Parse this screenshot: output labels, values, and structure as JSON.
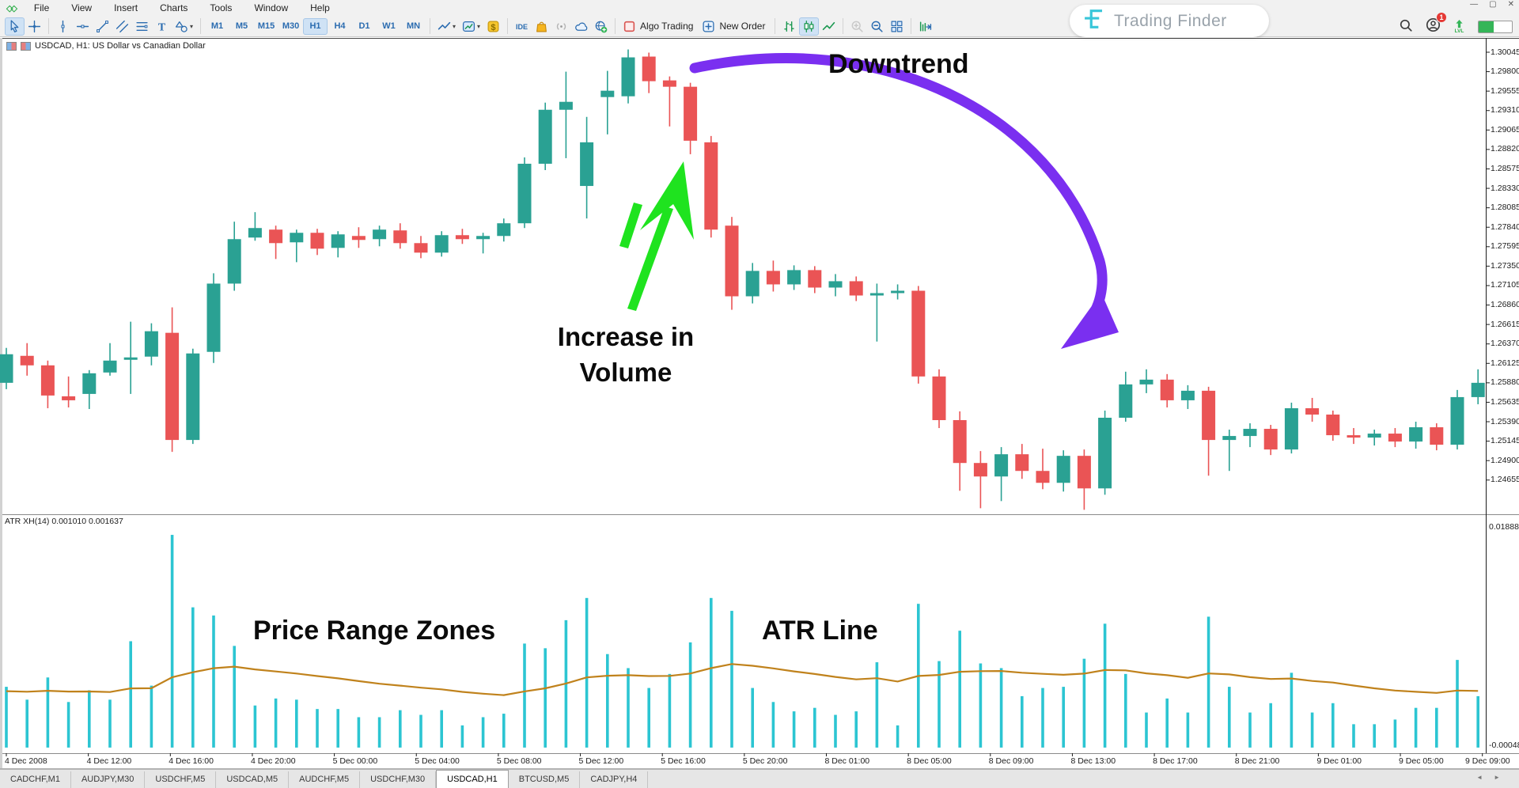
{
  "menu": {
    "items": [
      "File",
      "View",
      "Insert",
      "Charts",
      "Tools",
      "Window",
      "Help"
    ]
  },
  "window_controls": {
    "minimize": "—",
    "maximize": "▢",
    "close": "✕"
  },
  "toolbar": {
    "groups": [
      {
        "name": "cursor-tools",
        "buttons": [
          {
            "icon": "pointer-icon",
            "active": true
          },
          {
            "icon": "crosshair-icon"
          }
        ]
      },
      {
        "name": "draw-tools",
        "buttons": [
          {
            "icon": "vertical-line-icon"
          },
          {
            "icon": "horizontal-line-icon"
          },
          {
            "icon": "trendline-icon"
          },
          {
            "icon": "equidistant-channel-icon"
          },
          {
            "icon": "fibonacci-icon"
          },
          {
            "icon": "text-icon"
          },
          {
            "icon": "shapes-icon",
            "caret": true
          }
        ]
      },
      {
        "name": "timeframes",
        "timeframe_options": [
          "M1",
          "M5",
          "M15",
          "M30",
          "H1",
          "H4",
          "D1",
          "W1",
          "MN"
        ],
        "active_timeframe": "H1"
      },
      {
        "name": "chart-tools",
        "buttons": [
          {
            "icon": "chart-template-icon",
            "caret": true
          },
          {
            "icon": "indicators-icon",
            "caret": true
          },
          {
            "icon": "quotes-icon"
          }
        ]
      },
      {
        "name": "services",
        "buttons": [
          {
            "icon": "ide-icon"
          },
          {
            "icon": "market-icon"
          },
          {
            "icon": "signals-icon"
          },
          {
            "icon": "cloud-icon"
          },
          {
            "icon": "community-icon"
          }
        ]
      },
      {
        "name": "trading",
        "buttons": [
          {
            "icon": "algo-trading-icon",
            "label": "Algo Trading"
          },
          {
            "icon": "new-order-icon",
            "label": "New Order"
          }
        ]
      },
      {
        "name": "chart-modes",
        "buttons": [
          {
            "icon": "bars-icon"
          },
          {
            "icon": "candles-icon",
            "active": true
          },
          {
            "icon": "line-mode-icon"
          }
        ]
      },
      {
        "name": "zoom",
        "buttons": [
          {
            "icon": "zoom-in-icon",
            "disabled": true
          },
          {
            "icon": "zoom-out-icon"
          },
          {
            "icon": "tile-windows-icon"
          }
        ]
      },
      {
        "name": "shift",
        "buttons": [
          {
            "icon": "auto-shift-icon"
          }
        ]
      }
    ],
    "notification_count": "1",
    "lvl_label": "LVL"
  },
  "brand": {
    "name": "Trading Finder",
    "accent": "#38c6d9"
  },
  "chart": {
    "title": "USDCAD, H1:  US Dollar vs Canadian Dollar",
    "price_axis": [
      "1.30045",
      "1.29800",
      "1.29555",
      "1.29310",
      "1.29065",
      "1.28820",
      "1.28575",
      "1.28330",
      "1.28085",
      "1.27840",
      "1.27595",
      "1.27350",
      "1.27105",
      "1.26860",
      "1.26615",
      "1.26370",
      "1.26125",
      "1.25880",
      "1.25635",
      "1.25390",
      "1.25145",
      "1.24900",
      "1.24655"
    ],
    "time_axis": [
      "4 Dec 2008",
      "4 Dec 12:00",
      "4 Dec 16:00",
      "4 Dec 20:00",
      "5 Dec 00:00",
      "5 Dec 04:00",
      "5 Dec 08:00",
      "5 Dec 12:00",
      "5 Dec 16:00",
      "5 Dec 20:00",
      "8 Dec 01:00",
      "8 Dec 05:00",
      "8 Dec 09:00",
      "8 Dec 13:00",
      "8 Dec 17:00",
      "8 Dec 21:00",
      "9 Dec 01:00",
      "9 Dec 05:00",
      "9 Dec 09:00"
    ],
    "annotations": {
      "downtrend": "Downtrend",
      "increase_volume": "Increase in Volume",
      "price_range": "Price Range Zones",
      "atr_line": "ATR Line"
    }
  },
  "indicator": {
    "label": "ATR XH(14) 0.001010 0.001637",
    "scale_max": "0.018880",
    "scale_min": "-0.000480"
  },
  "tabs": {
    "items": [
      "CADCHF,M1",
      "AUDJPY,M30",
      "USDCHF,M5",
      "USDCAD,M5",
      "AUDCHF,M5",
      "USDCHF,M30",
      "USDCAD,H1",
      "BTCUSD,M5",
      "CADJPY,H4"
    ],
    "active": "USDCAD,H1"
  },
  "chart_data": {
    "type": "candlestick",
    "symbol": "USDCAD",
    "timeframe": "H1",
    "ylim": [
      1.2425,
      1.3022
    ],
    "price_step_per_gridlabel": 0.00245,
    "colors": {
      "bull": "#2aa193",
      "bear": "#ea5455",
      "atr_bar": "#2cc5d2",
      "atr_line": "#c0821c",
      "arrow_green": "#1fe31f",
      "arrow_purple": "#7a2ff0"
    },
    "candles": [
      [
        1.2588,
        1.2632,
        1.258,
        1.2624
      ],
      [
        1.2622,
        1.2638,
        1.2597,
        1.261
      ],
      [
        1.261,
        1.2616,
        1.2556,
        1.2572
      ],
      [
        1.2571,
        1.2596,
        1.2557,
        1.2566
      ],
      [
        1.2574,
        1.2604,
        1.2555,
        1.26
      ],
      [
        1.2601,
        1.2638,
        1.2597,
        1.2616
      ],
      [
        1.2617,
        1.2665,
        1.2574,
        1.262
      ],
      [
        1.2621,
        1.2663,
        1.261,
        1.2653
      ],
      [
        1.2651,
        1.2683,
        1.2501,
        1.2516
      ],
      [
        1.2516,
        1.2631,
        1.2511,
        1.2625
      ],
      [
        1.2627,
        1.2726,
        1.2613,
        1.2713
      ],
      [
        1.2713,
        1.2791,
        1.2704,
        1.2769
      ],
      [
        1.2771,
        1.2803,
        1.2767,
        1.2783
      ],
      [
        1.2781,
        1.2786,
        1.2744,
        1.2764
      ],
      [
        1.2765,
        1.2781,
        1.274,
        1.2777
      ],
      [
        1.2777,
        1.2782,
        1.2749,
        1.2757
      ],
      [
        1.2758,
        1.2779,
        1.2746,
        1.2775
      ],
      [
        1.2773,
        1.2784,
        1.2758,
        1.2768
      ],
      [
        1.2769,
        1.2786,
        1.276,
        1.2781
      ],
      [
        1.278,
        1.2789,
        1.2757,
        1.2764
      ],
      [
        1.2764,
        1.2773,
        1.2745,
        1.2752
      ],
      [
        1.2752,
        1.2779,
        1.2747,
        1.2774
      ],
      [
        1.2774,
        1.2782,
        1.2763,
        1.2769
      ],
      [
        1.2769,
        1.2777,
        1.2751,
        1.2773
      ],
      [
        1.2773,
        1.2795,
        1.2766,
        1.2789
      ],
      [
        1.2789,
        1.2872,
        1.2783,
        1.2864
      ],
      [
        1.2864,
        1.2941,
        1.2856,
        1.2932
      ],
      [
        1.2932,
        1.298,
        1.2871,
        1.2942
      ],
      [
        1.2836,
        1.2923,
        1.2795,
        1.2891
      ],
      [
        1.2948,
        1.2981,
        1.2901,
        1.2956
      ],
      [
        1.2949,
        1.3008,
        1.294,
        1.2998
      ],
      [
        1.2999,
        1.3004,
        1.2953,
        1.2968
      ],
      [
        1.2969,
        1.2974,
        1.2911,
        1.2961
      ],
      [
        1.2961,
        1.2966,
        1.2876,
        1.2893
      ],
      [
        1.2891,
        1.2899,
        1.2771,
        1.2781
      ],
      [
        1.2786,
        1.2797,
        1.268,
        1.2697
      ],
      [
        1.2697,
        1.2739,
        1.2688,
        1.2729
      ],
      [
        1.2729,
        1.2742,
        1.2703,
        1.2712
      ],
      [
        1.2712,
        1.2736,
        1.2705,
        1.273
      ],
      [
        1.273,
        1.2735,
        1.2701,
        1.2708
      ],
      [
        1.2708,
        1.2725,
        1.2697,
        1.2716
      ],
      [
        1.2716,
        1.2722,
        1.2691,
        1.2698
      ],
      [
        1.2698,
        1.2713,
        1.264,
        1.2701
      ],
      [
        1.2701,
        1.2712,
        1.2693,
        1.2704
      ],
      [
        1.2704,
        1.271,
        1.2587,
        1.2596
      ],
      [
        1.2596,
        1.2605,
        1.2531,
        1.2541
      ],
      [
        1.2541,
        1.2552,
        1.2452,
        1.2487
      ],
      [
        1.2487,
        1.2502,
        1.243,
        1.247
      ],
      [
        1.247,
        1.2507,
        1.2439,
        1.2498
      ],
      [
        1.2498,
        1.2511,
        1.2467,
        1.2477
      ],
      [
        1.2477,
        1.2505,
        1.2454,
        1.2462
      ],
      [
        1.2462,
        1.2503,
        1.2451,
        1.2496
      ],
      [
        1.2496,
        1.2504,
        1.2428,
        1.2455
      ],
      [
        1.2455,
        1.2553,
        1.2447,
        1.2544
      ],
      [
        1.2544,
        1.2602,
        1.2539,
        1.2586
      ],
      [
        1.2586,
        1.2605,
        1.2575,
        1.2592
      ],
      [
        1.2592,
        1.2599,
        1.2557,
        1.2566
      ],
      [
        1.2566,
        1.2585,
        1.2555,
        1.2578
      ],
      [
        1.2578,
        1.2583,
        1.2471,
        1.2516
      ],
      [
        1.2516,
        1.2529,
        1.2477,
        1.2521
      ],
      [
        1.2521,
        1.2537,
        1.2507,
        1.253
      ],
      [
        1.253,
        1.2535,
        1.2497,
        1.2504
      ],
      [
        1.2504,
        1.2563,
        1.2499,
        1.2556
      ],
      [
        1.2556,
        1.2569,
        1.2539,
        1.2548
      ],
      [
        1.2548,
        1.2553,
        1.2515,
        1.2522
      ],
      [
        1.2522,
        1.2531,
        1.2511,
        1.2519
      ],
      [
        1.2519,
        1.2529,
        1.2509,
        1.2524
      ],
      [
        1.2524,
        1.2531,
        1.2507,
        1.2514
      ],
      [
        1.2514,
        1.2539,
        1.2505,
        1.2532
      ],
      [
        1.2532,
        1.2537,
        1.2503,
        1.251
      ],
      [
        1.251,
        1.2579,
        1.2504,
        1.257
      ],
      [
        1.257,
        1.2605,
        1.2561,
        1.2588
      ]
    ],
    "atr_indicator": {
      "name": "ATR XH",
      "period": 14,
      "current_values": [
        "0.001010",
        "0.001637"
      ],
      "scale": [
        -0.00048,
        0.01888
      ]
    }
  }
}
